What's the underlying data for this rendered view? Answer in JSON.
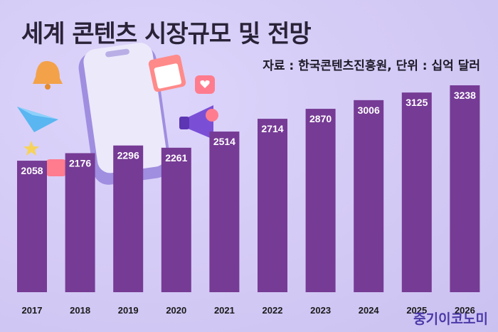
{
  "header": {
    "title": "세계 콘텐츠 시장규모 및 전망",
    "source": "자료 : 한국콘텐츠진흥원, 단위 : 십억 달러"
  },
  "brand": "중기이코노미",
  "colors": {
    "bar": "#763b95",
    "background": "#d3caf5",
    "value_label": "#ffffff"
  },
  "chart_data": {
    "type": "bar",
    "title": "세계 콘텐츠 시장규모 및 전망",
    "xlabel": "",
    "ylabel": "",
    "unit": "십억 달러",
    "categories": [
      "2017",
      "2018",
      "2019",
      "2020",
      "2021",
      "2022",
      "2023",
      "2024",
      "2025",
      "2026"
    ],
    "values": [
      2058,
      2176,
      2296,
      2261,
      2514,
      2714,
      2870,
      3006,
      3125,
      3238
    ],
    "ylim": [
      0,
      3400
    ],
    "grid": false,
    "legend": "none"
  }
}
